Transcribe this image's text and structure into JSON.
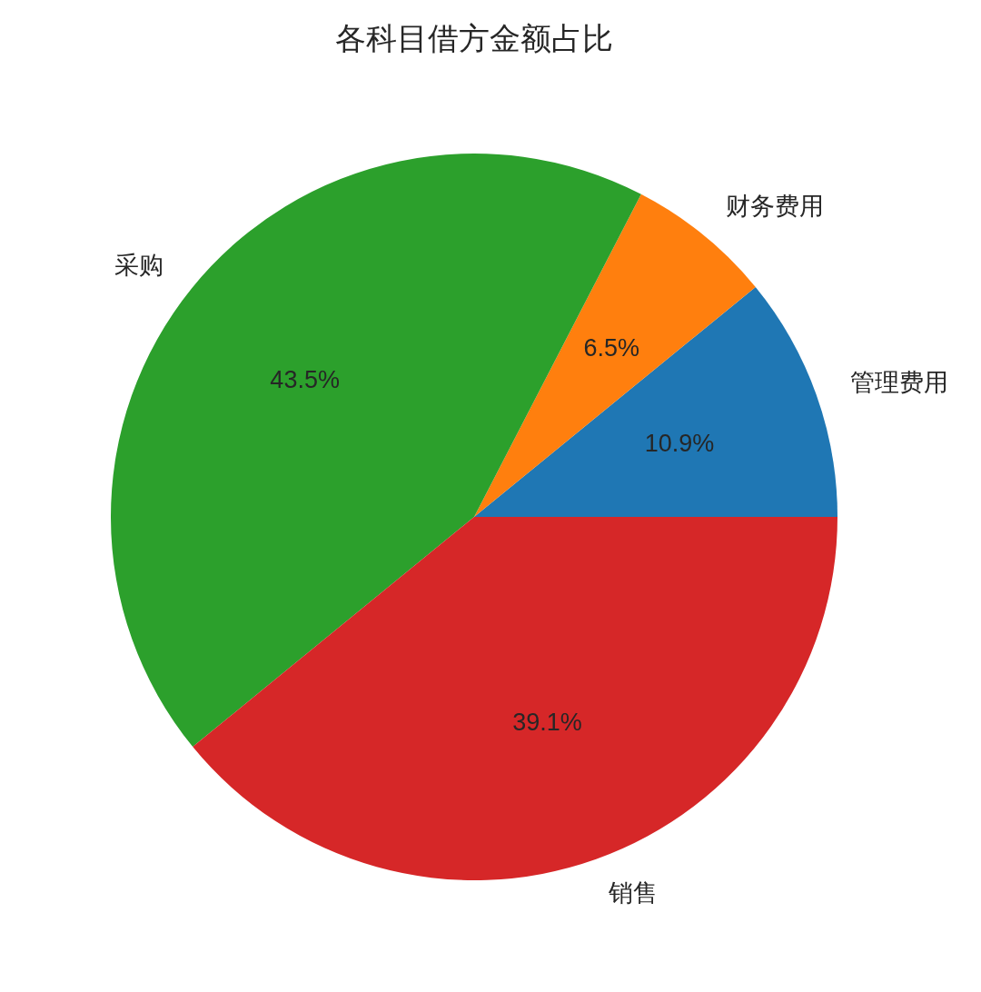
{
  "chart_data": {
    "type": "pie",
    "title": "各科目借方金额占比",
    "categories": [
      "管理费用",
      "财务费用",
      "采购",
      "销售"
    ],
    "values": [
      10.9,
      6.5,
      43.5,
      39.1
    ],
    "colors": [
      "#1f77b4",
      "#ff7f0e",
      "#2ca02c",
      "#d62728"
    ],
    "value_labels": [
      "10.9%",
      "6.5%",
      "43.5%",
      "39.1%"
    ]
  }
}
